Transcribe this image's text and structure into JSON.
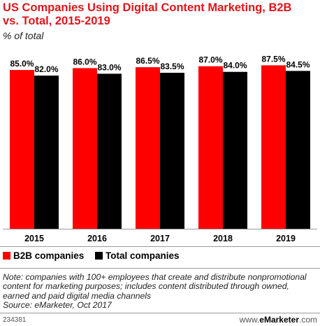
{
  "chart_data": {
    "type": "bar",
    "title": "US Companies Using Digital Content Marketing, B2B vs. Total, 2015-2019",
    "subtitle": "% of total",
    "categories": [
      "2015",
      "2016",
      "2017",
      "2018",
      "2019"
    ],
    "series": [
      {
        "name": "B2B companies",
        "color": "#ff0000",
        "values": [
          85.0,
          86.0,
          86.5,
          87.0,
          87.5
        ],
        "labels": [
          "85.0%",
          "86.0%",
          "86.5%",
          "87.0%",
          "87.5%"
        ]
      },
      {
        "name": "Total companies",
        "color": "#000000",
        "values": [
          82.0,
          83.0,
          83.5,
          84.0,
          84.5
        ],
        "labels": [
          "82.0%",
          "83.0%",
          "83.5%",
          "84.0%",
          "84.5%"
        ]
      }
    ],
    "ylim": [
      0,
      100
    ],
    "grid": false,
    "legend": "bottom-left"
  },
  "note": "Note: companies with 100+ employees that create and distribute nonpromotional content for marketing purposes; includes content distributed through owned, earned and paid digital media channels",
  "source": "Source: eMarketer, Oct 2017",
  "footer": {
    "chart_id": "234381",
    "brand_prefix": "www.",
    "brand_name": "eMarketer",
    "brand_suffix": ".com"
  }
}
